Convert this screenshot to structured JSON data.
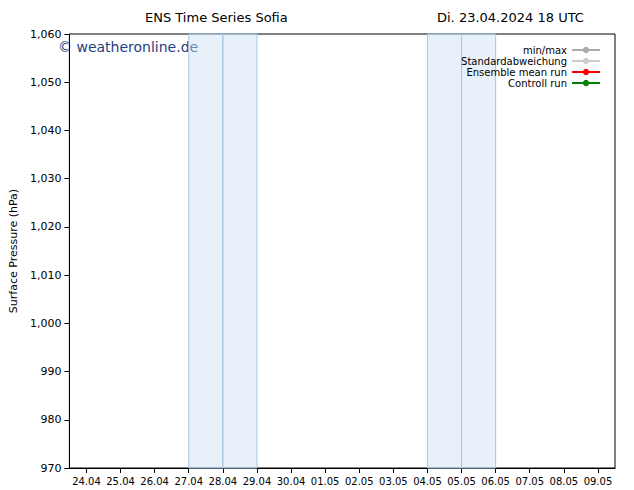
{
  "chart_data": {
    "type": "line",
    "title": "ENS Time Series Sofia",
    "subtitle": "Di. 23.04.2024 18 UTC",
    "annotation": "© weatheronline.de",
    "y_label": "Surface Pressure (hPa)",
    "categories": [
      "24.04",
      "25.04",
      "26.04",
      "27.04",
      "28.04",
      "29.04",
      "30.04",
      "01.05",
      "02.05",
      "03.05",
      "04.05",
      "05.05",
      "06.05",
      "07.05",
      "08.05",
      "09.05"
    ],
    "series": [
      {
        "name": "min/max",
        "color": "#aaaaaa",
        "values": [
          null,
          null,
          null,
          null,
          null,
          null,
          null,
          null,
          null,
          null,
          null,
          null,
          null,
          null,
          null,
          null
        ]
      },
      {
        "name": "Standardabweichung",
        "color": "#cccccc",
        "values": [
          null,
          null,
          null,
          null,
          null,
          null,
          null,
          null,
          null,
          null,
          null,
          null,
          null,
          null,
          null,
          null
        ]
      },
      {
        "name": "Ensemble mean run",
        "color": "#ff0000",
        "values": [
          null,
          null,
          null,
          null,
          null,
          null,
          null,
          null,
          null,
          null,
          null,
          null,
          null,
          null,
          null,
          null
        ]
      },
      {
        "name": "Controll run",
        "color": "#008000",
        "values": [
          null,
          null,
          null,
          null,
          null,
          null,
          null,
          null,
          null,
          null,
          null,
          null,
          null,
          null,
          null,
          null
        ]
      }
    ],
    "shaded_periods": [
      [
        "27.04",
        "29.04"
      ],
      [
        "04.05",
        "06.05"
      ]
    ],
    "ylim": [
      970,
      1060
    ],
    "yticks": [
      970,
      980,
      990,
      1000,
      1010,
      1020,
      1030,
      1040,
      1050,
      1060
    ],
    "grid": false,
    "legend": "upper right"
  }
}
